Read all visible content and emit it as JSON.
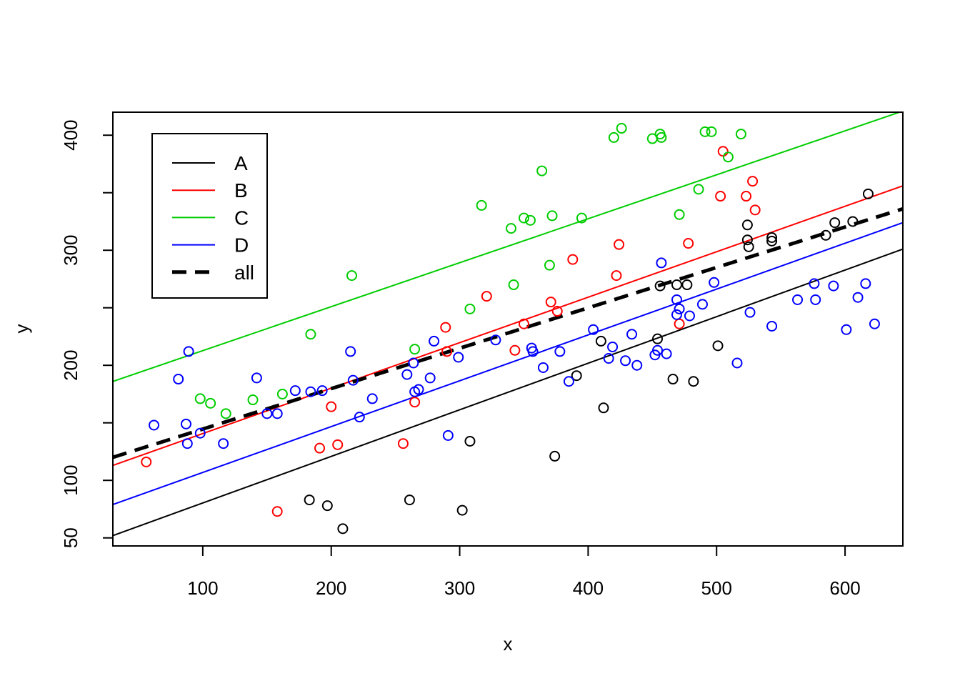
{
  "chart_data": {
    "type": "scatter",
    "title": "",
    "xlabel": "x",
    "ylabel": "y",
    "xlim": [
      30,
      645
    ],
    "ylim": [
      43,
      420
    ],
    "xticks": [
      100,
      200,
      300,
      400,
      500,
      600
    ],
    "yticks": [
      50,
      100,
      200,
      300,
      400
    ],
    "grid": false,
    "legend": {
      "position": "top-left",
      "entries": [
        {
          "label": "A",
          "color": "#000000",
          "style": "solid"
        },
        {
          "label": "B",
          "color": "#ff0000",
          "style": "solid"
        },
        {
          "label": "C",
          "color": "#00cd00",
          "style": "solid"
        },
        {
          "label": "D",
          "color": "#0000ff",
          "style": "solid"
        },
        {
          "label": "all",
          "color": "#000000",
          "style": "dashed"
        }
      ]
    },
    "series": [
      {
        "name": "A",
        "color": "#000000",
        "points": [
          [
            183,
            83
          ],
          [
            197,
            78
          ],
          [
            209,
            58
          ],
          [
            261,
            83
          ],
          [
            302,
            74
          ],
          [
            308,
            134
          ],
          [
            374,
            121
          ],
          [
            391,
            191
          ],
          [
            410,
            221
          ],
          [
            412,
            163
          ],
          [
            454,
            223
          ],
          [
            456,
            269
          ],
          [
            466,
            188
          ],
          [
            469,
            270
          ],
          [
            477,
            270
          ],
          [
            482,
            186
          ],
          [
            501,
            217
          ],
          [
            524,
            322
          ],
          [
            524,
            309
          ],
          [
            525,
            303
          ],
          [
            543,
            311
          ],
          [
            543,
            308
          ],
          [
            585,
            313
          ],
          [
            592,
            324
          ],
          [
            606,
            325
          ],
          [
            618,
            349
          ]
        ],
        "fit": [
          [
            30,
            52
          ],
          [
            645,
            301
          ]
        ]
      },
      {
        "name": "B",
        "color": "#ff0000",
        "points": [
          [
            56,
            116
          ],
          [
            158,
            73
          ],
          [
            191,
            128
          ],
          [
            200,
            164
          ],
          [
            205,
            131
          ],
          [
            256,
            132
          ],
          [
            265,
            168
          ],
          [
            289,
            233
          ],
          [
            290,
            212
          ],
          [
            321,
            260
          ],
          [
            343,
            213
          ],
          [
            350,
            236
          ],
          [
            371,
            255
          ],
          [
            376,
            247
          ],
          [
            388,
            292
          ],
          [
            422,
            278
          ],
          [
            424,
            305
          ],
          [
            471,
            236
          ],
          [
            478,
            306
          ],
          [
            503,
            347
          ],
          [
            505,
            386
          ],
          [
            523,
            347
          ],
          [
            528,
            360
          ],
          [
            530,
            335
          ]
        ],
        "fit": [
          [
            30,
            113
          ],
          [
            645,
            356
          ]
        ]
      },
      {
        "name": "C",
        "color": "#00cd00",
        "points": [
          [
            98,
            171
          ],
          [
            106,
            167
          ],
          [
            118,
            158
          ],
          [
            139,
            170
          ],
          [
            162,
            175
          ],
          [
            184,
            227
          ],
          [
            216,
            278
          ],
          [
            265,
            214
          ],
          [
            308,
            249
          ],
          [
            317,
            339
          ],
          [
            340,
            319
          ],
          [
            342,
            270
          ],
          [
            350,
            328
          ],
          [
            355,
            326
          ],
          [
            364,
            369
          ],
          [
            370,
            287
          ],
          [
            372,
            330
          ],
          [
            395,
            328
          ],
          [
            420,
            398
          ],
          [
            426,
            406
          ],
          [
            450,
            397
          ],
          [
            456,
            401
          ],
          [
            457,
            398
          ],
          [
            471,
            331
          ],
          [
            486,
            353
          ],
          [
            491,
            403
          ],
          [
            496,
            403
          ],
          [
            509,
            381
          ],
          [
            519,
            401
          ]
        ],
        "fit": [
          [
            30,
            186
          ],
          [
            645,
            421
          ]
        ]
      },
      {
        "name": "D",
        "color": "#0000ff",
        "points": [
          [
            62,
            148
          ],
          [
            81,
            188
          ],
          [
            87,
            149
          ],
          [
            88,
            132
          ],
          [
            89,
            212
          ],
          [
            98,
            141
          ],
          [
            116,
            132
          ],
          [
            142,
            189
          ],
          [
            150,
            158
          ],
          [
            158,
            158
          ],
          [
            172,
            178
          ],
          [
            184,
            177
          ],
          [
            193,
            178
          ],
          [
            215,
            212
          ],
          [
            217,
            187
          ],
          [
            222,
            155
          ],
          [
            232,
            171
          ],
          [
            259,
            192
          ],
          [
            264,
            202
          ],
          [
            265,
            177
          ],
          [
            268,
            179
          ],
          [
            277,
            189
          ],
          [
            280,
            221
          ],
          [
            291,
            139
          ],
          [
            299,
            207
          ],
          [
            328,
            222
          ],
          [
            356,
            215
          ],
          [
            357,
            212
          ],
          [
            365,
            198
          ],
          [
            378,
            212
          ],
          [
            385,
            186
          ],
          [
            404,
            231
          ],
          [
            416,
            206
          ],
          [
            419,
            216
          ],
          [
            429,
            204
          ],
          [
            434,
            227
          ],
          [
            438,
            200
          ],
          [
            452,
            209
          ],
          [
            454,
            213
          ],
          [
            457,
            289
          ],
          [
            461,
            210
          ],
          [
            469,
            257
          ],
          [
            469,
            244
          ],
          [
            471,
            249
          ],
          [
            479,
            243
          ],
          [
            489,
            253
          ],
          [
            498,
            272
          ],
          [
            516,
            202
          ],
          [
            526,
            246
          ],
          [
            543,
            234
          ],
          [
            563,
            257
          ],
          [
            576,
            271
          ],
          [
            577,
            257
          ],
          [
            591,
            269
          ],
          [
            601,
            231
          ],
          [
            610,
            259
          ],
          [
            616,
            271
          ],
          [
            623,
            236
          ]
        ],
        "fit": [
          [
            30,
            79
          ],
          [
            645,
            324
          ]
        ]
      }
    ],
    "overall_fit": {
      "name": "all",
      "color": "#000000",
      "style": "dashed",
      "line": [
        [
          30,
          120
        ],
        [
          645,
          336
        ]
      ]
    }
  }
}
